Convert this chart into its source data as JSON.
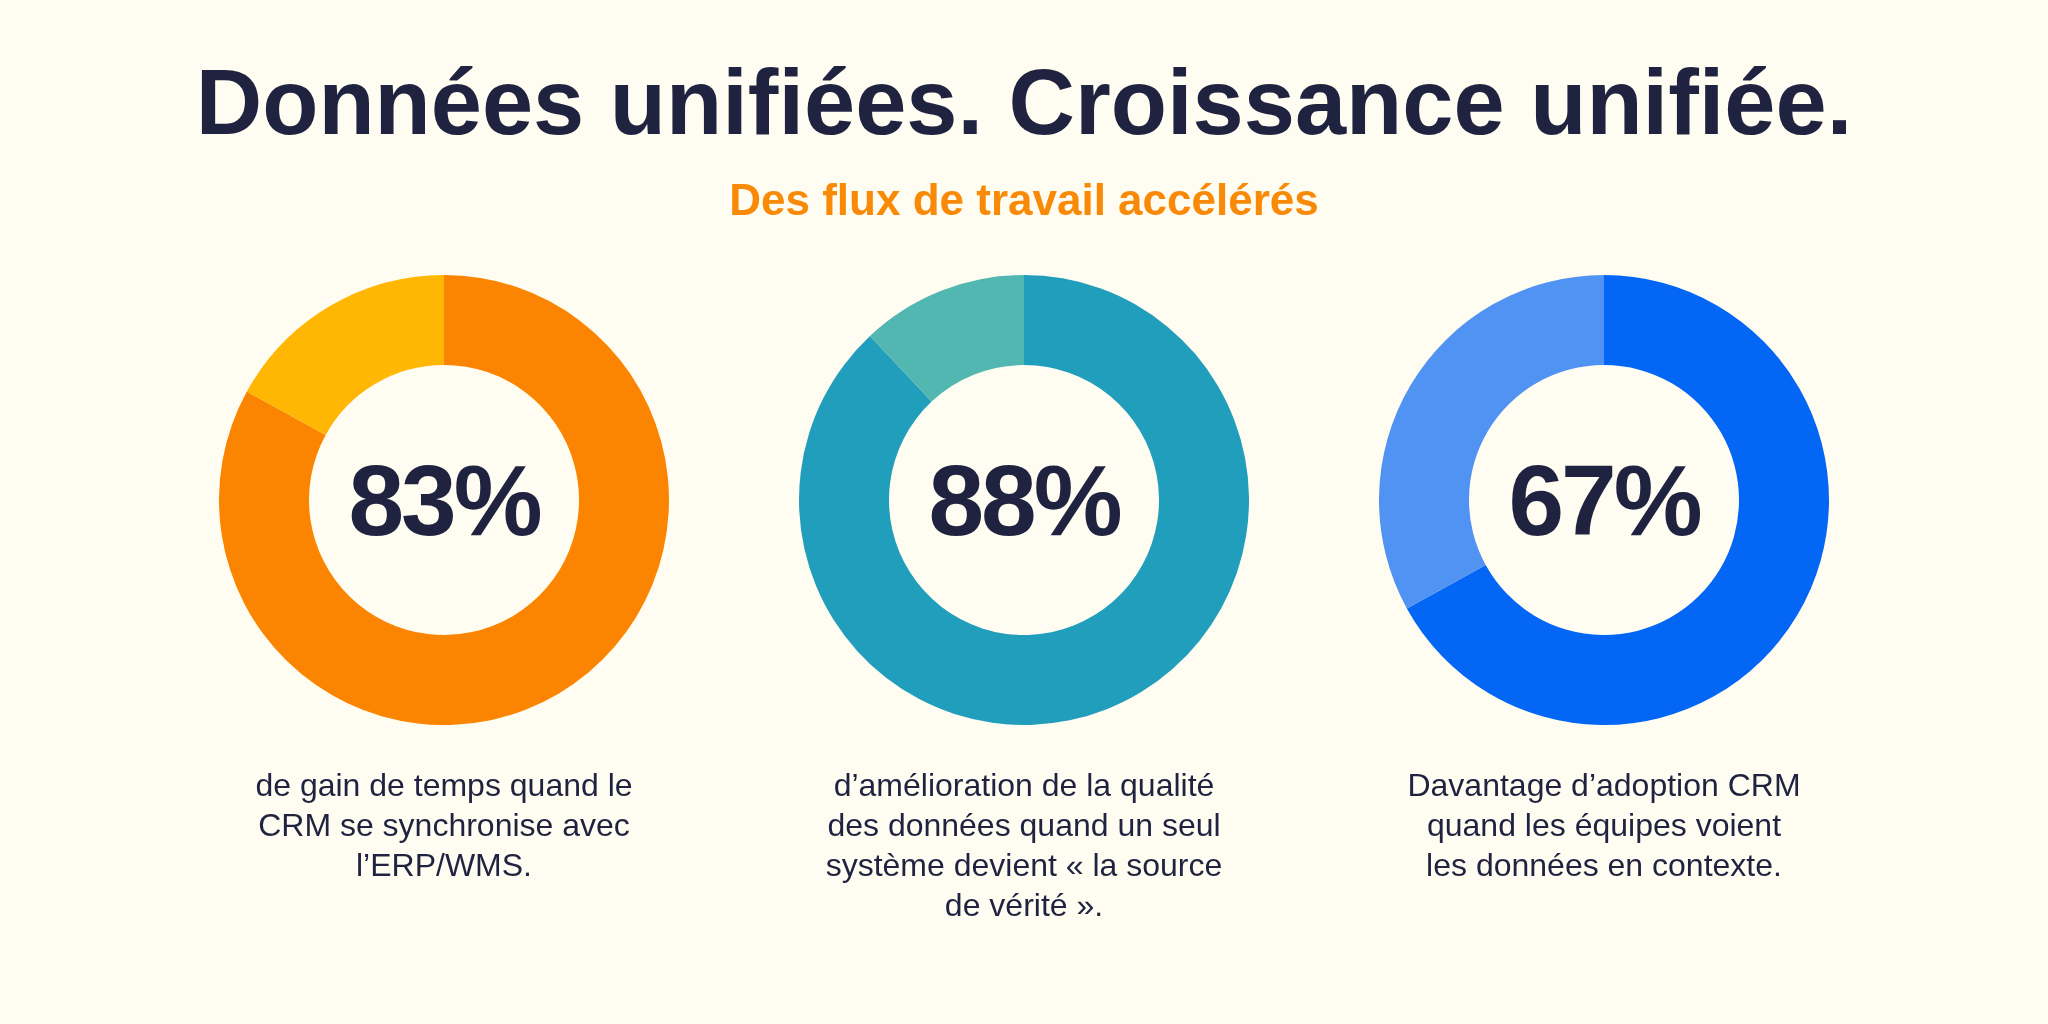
{
  "chart_data": [
    {
      "type": "other",
      "title": "Données unifiées. Croissance unifiée.",
      "subtitle": "Des flux de travail accélérés"
    },
    {
      "type": "donut",
      "categories": [
        null,
        null
      ],
      "values": [
        83,
        17
      ],
      "colors": [
        "#fb8500",
        "#ffb703"
      ],
      "legend": false,
      "annotations": [
        "83%",
        "de gain de temps quand le CRM se synchronise avec l’ERP/WMS."
      ]
    },
    {
      "type": "donut",
      "categories": [
        null,
        null
      ],
      "values": [
        88,
        12
      ],
      "colors": [
        "#219ebc",
        "#52b6b1"
      ],
      "legend": false,
      "annotations": [
        "88%",
        "d’amélioration de la qualité des données quand un seul système devient « la source de vérité »."
      ]
    },
    {
      "type": "donut",
      "categories": [
        null,
        null
      ],
      "values": [
        67,
        33
      ],
      "colors": [
        "#0466f5",
        "#5193f3"
      ],
      "legend": false,
      "annotations": [
        "67%",
        "Davantage d’adoption CRM quand les équipes voient les données en contexte."
      ]
    }
  ]
}
